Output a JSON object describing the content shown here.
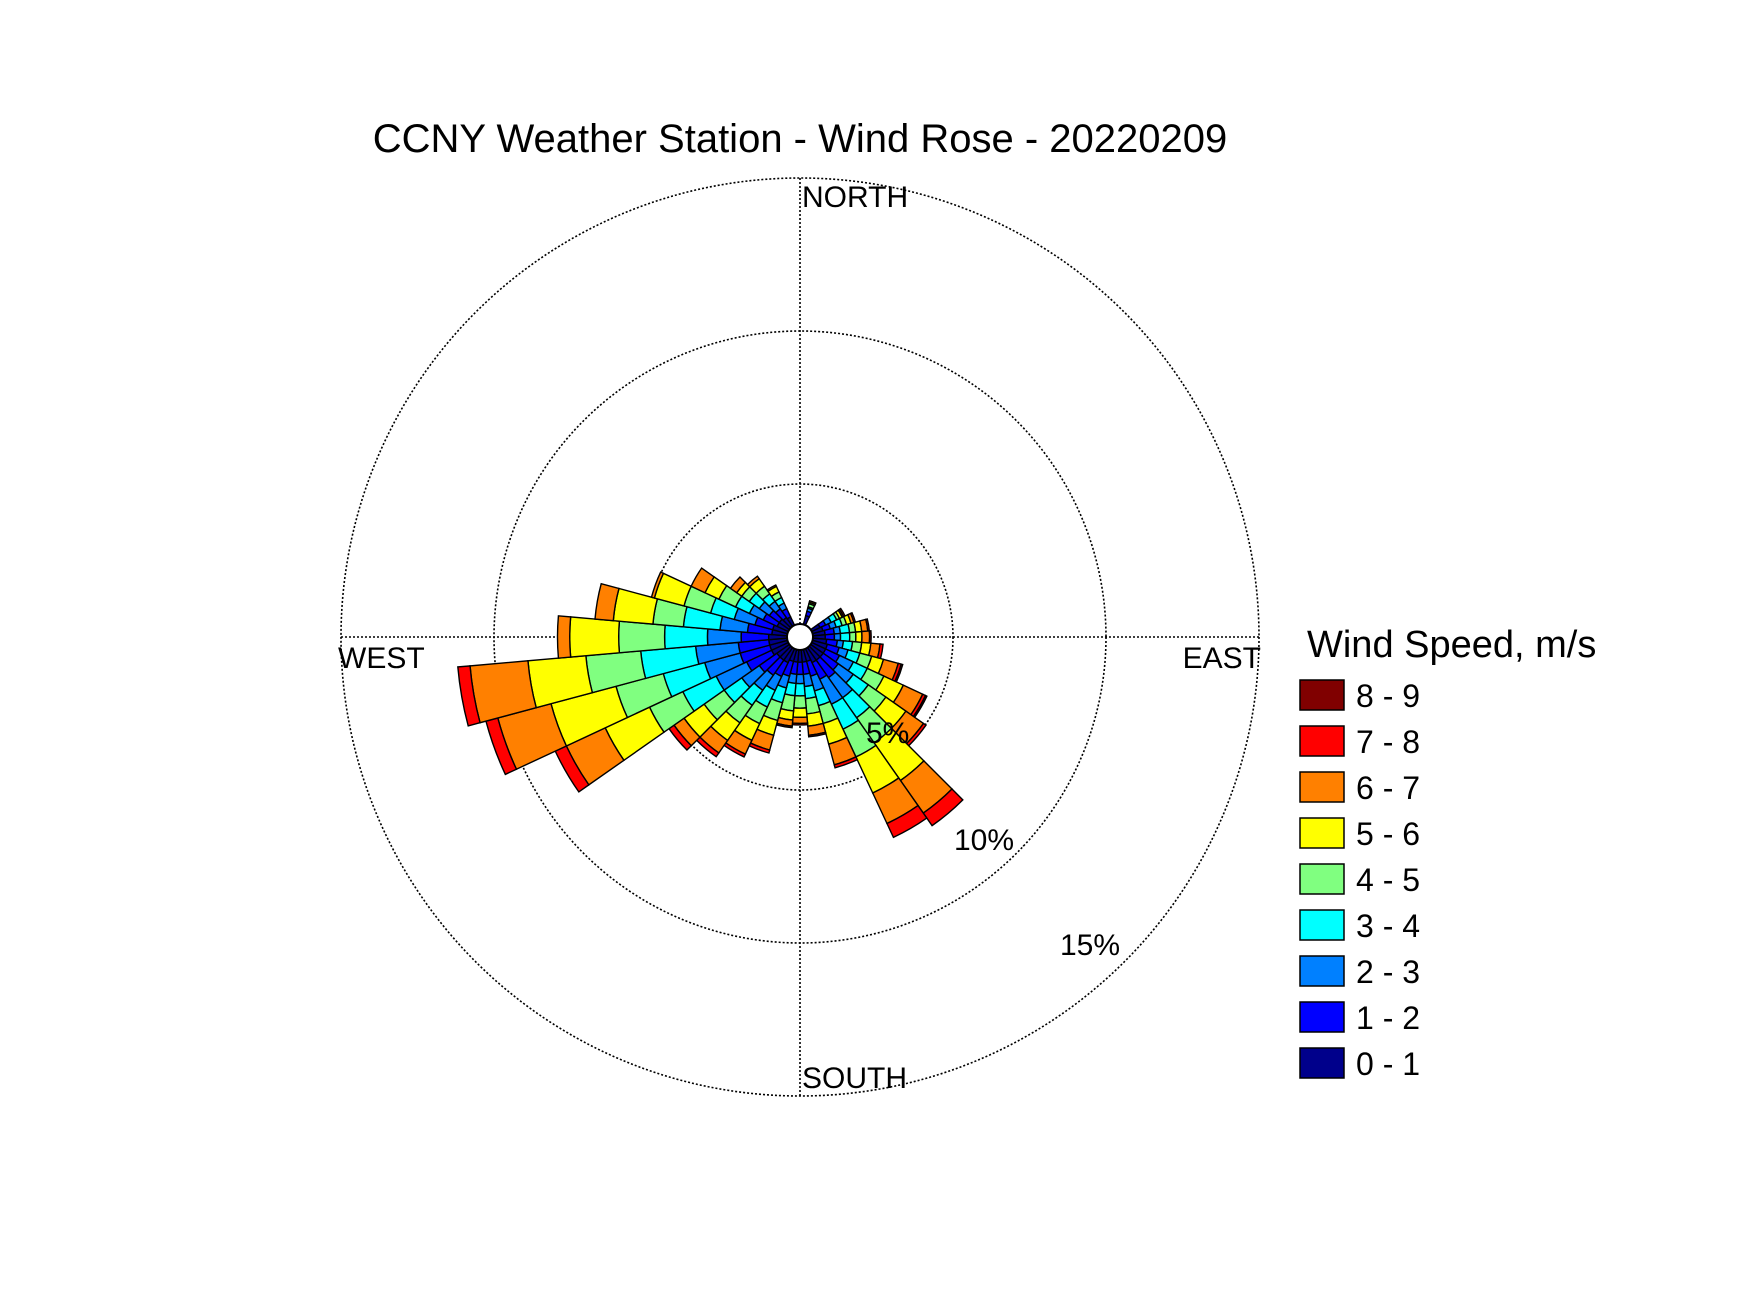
{
  "chart_data": {
    "type": "wind-rose",
    "title": "CCNY Weather Station - Wind Rose - 20220209",
    "direction_labels": {
      "north": "NORTH",
      "south": "SOUTH",
      "east": "EAST",
      "west": "WEST"
    },
    "ring_labels": [
      "5%",
      "10%",
      "15%"
    ],
    "rings_percent": [
      5,
      10,
      15
    ],
    "grid": true,
    "legend_position": "right",
    "legend_title": "Wind Speed, m/s",
    "speed_bins": [
      {
        "label": "0 - 1",
        "color": "#00008b"
      },
      {
        "label": "1 - 2",
        "color": "#0000ff"
      },
      {
        "label": "2 - 3",
        "color": "#0080ff"
      },
      {
        "label": "3 - 4",
        "color": "#00ffff"
      },
      {
        "label": "4 - 5",
        "color": "#80ff80"
      },
      {
        "label": "5 - 6",
        "color": "#ffff00"
      },
      {
        "label": "6 - 7",
        "color": "#ff8000"
      },
      {
        "label": "7 - 8",
        "color": "#ff0000"
      },
      {
        "label": "8 - 9",
        "color": "#800000"
      }
    ],
    "sector_width_deg": 10,
    "sectors": [
      {
        "direction_deg": 20,
        "cum_percent": [
          0.3,
          0.45,
          0.55,
          0.6,
          0.7,
          0.75,
          0.8,
          0.8,
          0.8
        ]
      },
      {
        "direction_deg": 60,
        "cum_percent": [
          0.3,
          0.5,
          0.7,
          0.9,
          1.0,
          1.1,
          1.15,
          1.2,
          1.2
        ]
      },
      {
        "direction_deg": 70,
        "cum_percent": [
          0.35,
          0.6,
          0.8,
          1.0,
          1.15,
          1.3,
          1.4,
          1.45,
          1.45
        ]
      },
      {
        "direction_deg": 80,
        "cum_percent": [
          0.4,
          0.7,
          0.9,
          1.2,
          1.4,
          1.6,
          1.8,
          1.85,
          1.85
        ]
      },
      {
        "direction_deg": 90,
        "cum_percent": [
          0.4,
          0.7,
          0.9,
          1.2,
          1.4,
          1.6,
          1.85,
          1.9,
          1.9
        ]
      },
      {
        "direction_deg": 100,
        "cum_percent": [
          0.45,
          0.8,
          1.0,
          1.3,
          1.6,
          1.9,
          2.2,
          2.3,
          2.3
        ]
      },
      {
        "direction_deg": 110,
        "cum_percent": [
          0.5,
          0.9,
          1.2,
          1.6,
          2.0,
          2.4,
          2.9,
          3.0,
          3.05
        ]
      },
      {
        "direction_deg": 120,
        "cum_percent": [
          0.5,
          1.0,
          1.5,
          2.0,
          2.6,
          3.3,
          4.0,
          4.1,
          4.15
        ]
      },
      {
        "direction_deg": 130,
        "cum_percent": [
          0.5,
          1.1,
          1.7,
          2.3,
          3.0,
          3.8,
          4.5,
          4.6,
          4.6
        ]
      },
      {
        "direction_deg": 140,
        "cum_percent": [
          0.5,
          1.2,
          2.0,
          2.8,
          3.8,
          5.3,
          6.6,
          7.1,
          7.1
        ]
      },
      {
        "direction_deg": 150,
        "cum_percent": [
          0.5,
          1.1,
          2.0,
          2.9,
          3.9,
          5.2,
          6.3,
          6.8,
          6.8
        ]
      },
      {
        "direction_deg": 160,
        "cum_percent": [
          0.4,
          0.9,
          1.4,
          1.9,
          2.5,
          3.2,
          3.9,
          4.0,
          4.0
        ]
      },
      {
        "direction_deg": 170,
        "cum_percent": [
          0.4,
          0.8,
          1.2,
          1.6,
          2.1,
          2.5,
          2.8,
          2.85,
          2.85
        ]
      },
      {
        "direction_deg": 180,
        "cum_percent": [
          0.4,
          0.8,
          1.1,
          1.5,
          1.9,
          2.2,
          2.4,
          2.45,
          2.45
        ]
      },
      {
        "direction_deg": 190,
        "cum_percent": [
          0.4,
          0.8,
          1.1,
          1.5,
          2.0,
          2.3,
          2.5,
          2.55,
          2.55
        ]
      },
      {
        "direction_deg": 200,
        "cum_percent": [
          0.4,
          0.9,
          1.3,
          1.8,
          2.4,
          2.9,
          3.4,
          3.5,
          3.5
        ]
      },
      {
        "direction_deg": 210,
        "cum_percent": [
          0.5,
          1.0,
          1.5,
          2.1,
          2.7,
          3.3,
          3.8,
          3.9,
          3.9
        ]
      },
      {
        "direction_deg": 220,
        "cum_percent": [
          0.5,
          1.1,
          1.7,
          2.3,
          3.0,
          3.7,
          4.2,
          4.35,
          4.35
        ]
      },
      {
        "direction_deg": 230,
        "cum_percent": [
          0.5,
          1.2,
          1.9,
          2.6,
          3.4,
          4.2,
          4.6,
          4.8,
          4.8
        ]
      },
      {
        "direction_deg": 240,
        "cum_percent": [
          0.6,
          1.5,
          2.6,
          3.8,
          5.0,
          6.6,
          8.0,
          8.4,
          8.4
        ]
      },
      {
        "direction_deg": 250,
        "cum_percent": [
          0.6,
          1.6,
          2.8,
          4.2,
          5.8,
          8.0,
          9.8,
          10.2,
          10.2
        ]
      },
      {
        "direction_deg": 260,
        "cum_percent": [
          0.6,
          1.6,
          3.0,
          4.8,
          6.6,
          8.5,
          10.4,
          10.8,
          10.8
        ]
      },
      {
        "direction_deg": 270,
        "cum_percent": [
          0.6,
          1.5,
          2.6,
          4.0,
          5.5,
          7.1,
          7.5,
          7.5,
          7.5
        ]
      },
      {
        "direction_deg": 280,
        "cum_percent": [
          0.5,
          1.3,
          2.2,
          3.4,
          4.4,
          5.7,
          6.3,
          6.3,
          6.3
        ]
      },
      {
        "direction_deg": 290,
        "cum_percent": [
          0.5,
          1.1,
          1.8,
          2.6,
          3.5,
          4.5,
          4.6,
          4.6,
          4.6
        ]
      },
      {
        "direction_deg": 300,
        "cum_percent": [
          0.4,
          0.9,
          1.4,
          1.9,
          2.5,
          3.0,
          3.5,
          3.5,
          3.5
        ]
      },
      {
        "direction_deg": 310,
        "cum_percent": [
          0.4,
          0.8,
          1.2,
          1.6,
          1.9,
          2.1,
          2.35,
          2.35,
          2.35
        ]
      },
      {
        "direction_deg": 320,
        "cum_percent": [
          0.35,
          0.7,
          1.0,
          1.3,
          1.6,
          1.9,
          2.0,
          2.0,
          2.0
        ]
      },
      {
        "direction_deg": 330,
        "cum_percent": [
          0.3,
          0.6,
          0.8,
          1.0,
          1.2,
          1.4,
          1.45,
          1.45,
          1.45
        ]
      }
    ]
  }
}
